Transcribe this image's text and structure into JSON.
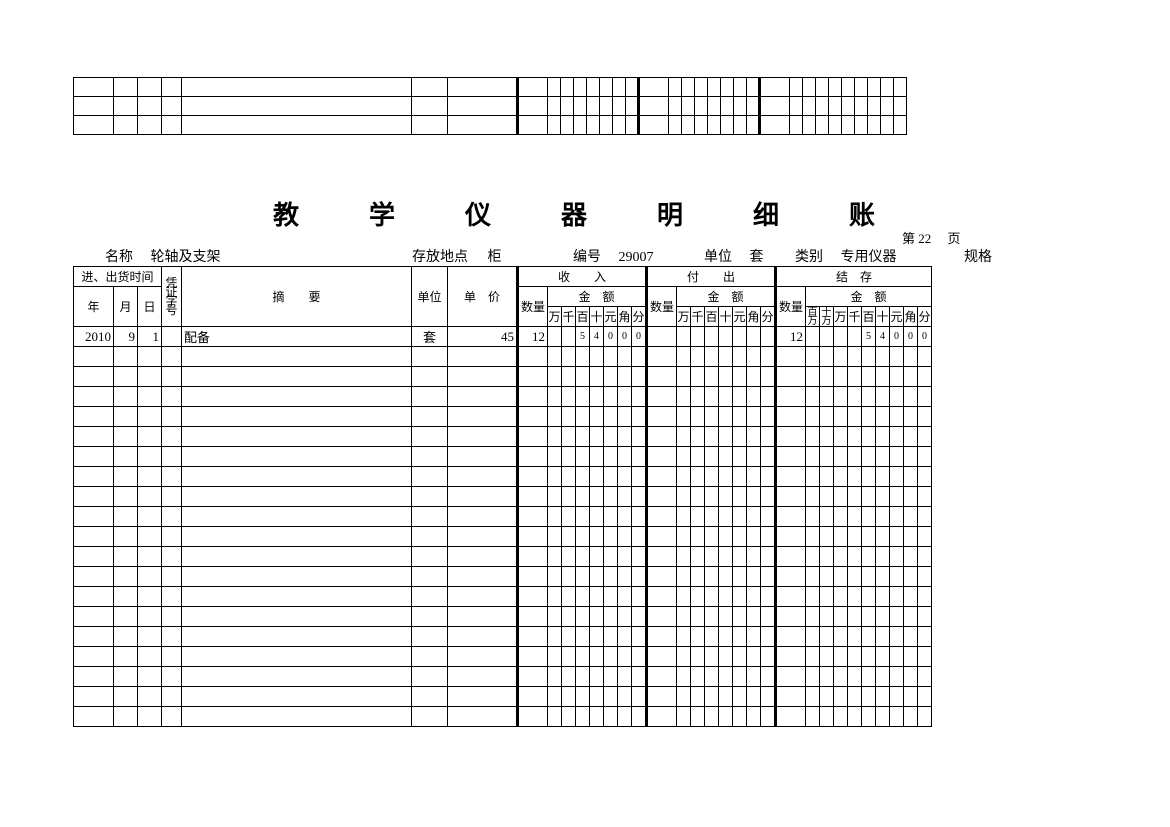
{
  "title": "教　学　仪　器　明　细　账",
  "page_label_prefix": "第",
  "page_no": "22",
  "page_label_suffix": "页",
  "meta": {
    "name_label": "名称",
    "name": "轮轴及支架",
    "loc_label": "存放地点",
    "loc": "柜",
    "code_label": "编号",
    "code": "29007",
    "unit_label": "单位",
    "unit": "套",
    "cat_label": "类别",
    "cat": "专用仪器",
    "spec_label": "规格"
  },
  "hdr": {
    "date": "进、出货时间",
    "year": "年",
    "month": "月",
    "day": "日",
    "voucher": "凭证字号",
    "summary": "摘　　要",
    "unit": "单位",
    "price": "单　价",
    "in": "收　　入",
    "out": "付　　出",
    "bal": "结　存",
    "qty": "数量",
    "amount": "金　额",
    "wan": "万",
    "qian": "千",
    "bai": "百",
    "shi": "十",
    "yuan": "元",
    "jiao": "角",
    "fen": "分",
    "baiwan": "百万",
    "shiwan": "十万"
  },
  "row": {
    "year": "2010",
    "month": "9",
    "day": "1",
    "summary": "配备",
    "unit": "套",
    "price": "45",
    "in_qty": "12",
    "in_amt": [
      "",
      "5",
      "4",
      "0",
      "0",
      "0"
    ],
    "bal_qty": "12",
    "bal_amt": [
      "",
      "",
      "",
      "5",
      "4",
      "0",
      "0",
      "0"
    ]
  },
  "empty_rows": 19,
  "stub_rows": 3,
  "colors": {
    "line": "#000000",
    "bg": "#ffffff",
    "text": "#000000"
  },
  "col_widths": {
    "year": 40,
    "month": 24,
    "day": 24,
    "voucher": 20,
    "summary": 230,
    "unit": 36,
    "price": 70,
    "qty": 30,
    "amt": 13
  }
}
